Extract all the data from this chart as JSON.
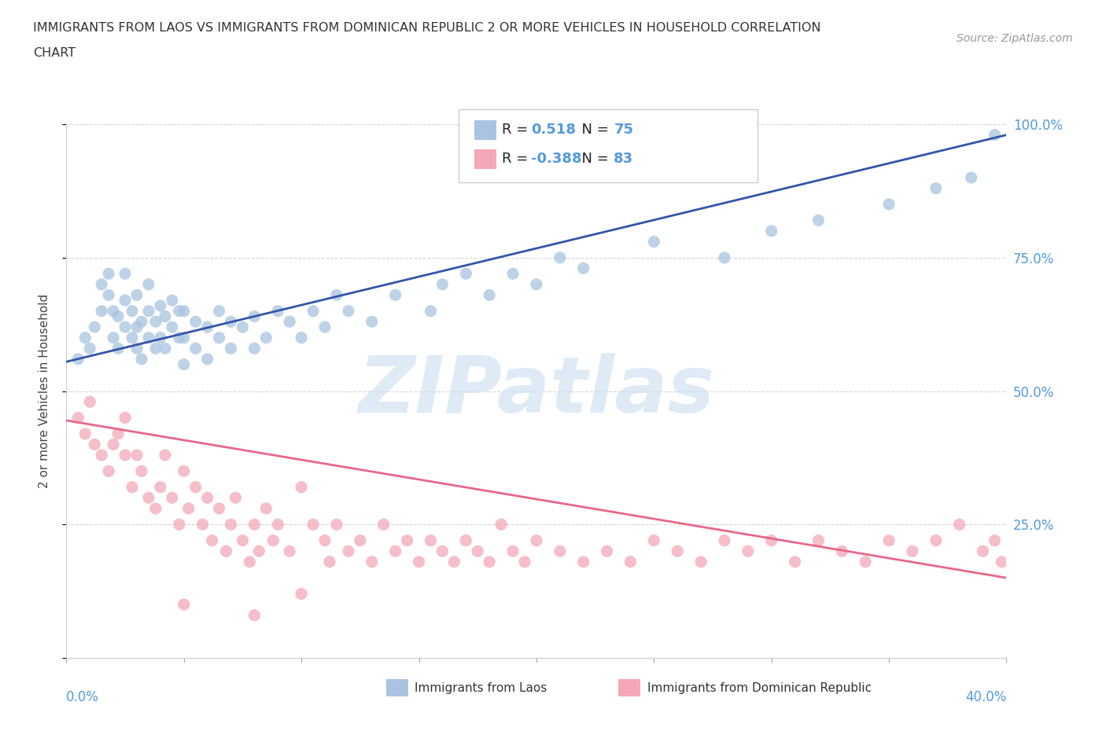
{
  "title_line1": "IMMIGRANTS FROM LAOS VS IMMIGRANTS FROM DOMINICAN REPUBLIC 2 OR MORE VEHICLES IN HOUSEHOLD CORRELATION",
  "title_line2": "CHART",
  "source": "Source: ZipAtlas.com",
  "ylabel": "2 or more Vehicles in Household",
  "xlim": [
    0,
    0.4
  ],
  "ylim": [
    0,
    1.0
  ],
  "blue_R": 0.518,
  "blue_N": 75,
  "pink_R": -0.388,
  "pink_N": 83,
  "blue_color": "#A8C4E0",
  "pink_color": "#F4A7B9",
  "blue_line_color": "#3355AA",
  "pink_line_color": "#E8688A",
  "right_label_color": "#5599DD",
  "watermark": "ZIPatlas",
  "blue_scatter_x": [
    0.005,
    0.008,
    0.01,
    0.012,
    0.015,
    0.015,
    0.018,
    0.018,
    0.02,
    0.02,
    0.022,
    0.022,
    0.025,
    0.025,
    0.025,
    0.028,
    0.028,
    0.03,
    0.03,
    0.03,
    0.032,
    0.032,
    0.035,
    0.035,
    0.035,
    0.038,
    0.038,
    0.04,
    0.04,
    0.042,
    0.042,
    0.045,
    0.045,
    0.048,
    0.048,
    0.05,
    0.05,
    0.05,
    0.055,
    0.055,
    0.06,
    0.06,
    0.065,
    0.065,
    0.07,
    0.07,
    0.075,
    0.08,
    0.08,
    0.085,
    0.09,
    0.095,
    0.1,
    0.105,
    0.11,
    0.115,
    0.12,
    0.13,
    0.14,
    0.155,
    0.16,
    0.17,
    0.18,
    0.19,
    0.2,
    0.21,
    0.22,
    0.25,
    0.28,
    0.3,
    0.32,
    0.35,
    0.37,
    0.385,
    0.395
  ],
  "blue_scatter_y": [
    0.56,
    0.6,
    0.58,
    0.62,
    0.65,
    0.7,
    0.68,
    0.72,
    0.6,
    0.65,
    0.58,
    0.64,
    0.62,
    0.67,
    0.72,
    0.6,
    0.65,
    0.58,
    0.62,
    0.68,
    0.56,
    0.63,
    0.6,
    0.65,
    0.7,
    0.58,
    0.63,
    0.6,
    0.66,
    0.58,
    0.64,
    0.62,
    0.67,
    0.6,
    0.65,
    0.55,
    0.6,
    0.65,
    0.58,
    0.63,
    0.56,
    0.62,
    0.6,
    0.65,
    0.58,
    0.63,
    0.62,
    0.58,
    0.64,
    0.6,
    0.65,
    0.63,
    0.6,
    0.65,
    0.62,
    0.68,
    0.65,
    0.63,
    0.68,
    0.65,
    0.7,
    0.72,
    0.68,
    0.72,
    0.7,
    0.75,
    0.73,
    0.78,
    0.75,
    0.8,
    0.82,
    0.85,
    0.88,
    0.9,
    0.98
  ],
  "pink_scatter_x": [
    0.005,
    0.008,
    0.01,
    0.012,
    0.015,
    0.018,
    0.02,
    0.022,
    0.025,
    0.025,
    0.028,
    0.03,
    0.032,
    0.035,
    0.038,
    0.04,
    0.042,
    0.045,
    0.048,
    0.05,
    0.052,
    0.055,
    0.058,
    0.06,
    0.062,
    0.065,
    0.068,
    0.07,
    0.072,
    0.075,
    0.078,
    0.08,
    0.082,
    0.085,
    0.088,
    0.09,
    0.095,
    0.1,
    0.105,
    0.11,
    0.112,
    0.115,
    0.12,
    0.125,
    0.13,
    0.135,
    0.14,
    0.145,
    0.15,
    0.155,
    0.16,
    0.165,
    0.17,
    0.175,
    0.18,
    0.185,
    0.19,
    0.195,
    0.2,
    0.21,
    0.22,
    0.23,
    0.24,
    0.25,
    0.26,
    0.27,
    0.28,
    0.29,
    0.3,
    0.31,
    0.32,
    0.33,
    0.34,
    0.35,
    0.36,
    0.37,
    0.38,
    0.39,
    0.395,
    0.398,
    0.05,
    0.08,
    0.1
  ],
  "pink_scatter_y": [
    0.45,
    0.42,
    0.48,
    0.4,
    0.38,
    0.35,
    0.4,
    0.42,
    0.38,
    0.45,
    0.32,
    0.38,
    0.35,
    0.3,
    0.28,
    0.32,
    0.38,
    0.3,
    0.25,
    0.35,
    0.28,
    0.32,
    0.25,
    0.3,
    0.22,
    0.28,
    0.2,
    0.25,
    0.3,
    0.22,
    0.18,
    0.25,
    0.2,
    0.28,
    0.22,
    0.25,
    0.2,
    0.32,
    0.25,
    0.22,
    0.18,
    0.25,
    0.2,
    0.22,
    0.18,
    0.25,
    0.2,
    0.22,
    0.18,
    0.22,
    0.2,
    0.18,
    0.22,
    0.2,
    0.18,
    0.25,
    0.2,
    0.18,
    0.22,
    0.2,
    0.18,
    0.2,
    0.18,
    0.22,
    0.2,
    0.18,
    0.22,
    0.2,
    0.22,
    0.18,
    0.22,
    0.2,
    0.18,
    0.22,
    0.2,
    0.22,
    0.25,
    0.2,
    0.22,
    0.18,
    0.1,
    0.08,
    0.12
  ]
}
